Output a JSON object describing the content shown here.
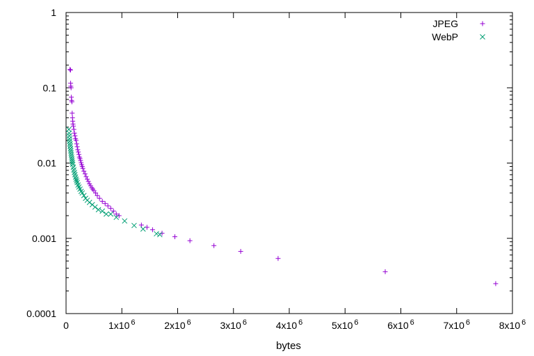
{
  "chart_data": {
    "type": "scatter",
    "title": "",
    "xlabel": "bytes",
    "ylabel": "",
    "y_scale": "log",
    "xlim": [
      0,
      8000000
    ],
    "ylim": [
      0.0001,
      1
    ],
    "grid": false,
    "legend_placement": "top-right",
    "x_ticks": [
      {
        "value": 0,
        "label": "0",
        "exp": ""
      },
      {
        "value": 1000000,
        "label": "1x10",
        "exp": "6"
      },
      {
        "value": 2000000,
        "label": "2x10",
        "exp": "6"
      },
      {
        "value": 3000000,
        "label": "3x10",
        "exp": "6"
      },
      {
        "value": 4000000,
        "label": "4x10",
        "exp": "6"
      },
      {
        "value": 5000000,
        "label": "5x10",
        "exp": "6"
      },
      {
        "value": 6000000,
        "label": "6x10",
        "exp": "6"
      },
      {
        "value": 7000000,
        "label": "7x10",
        "exp": "6"
      },
      {
        "value": 8000000,
        "label": "8x10",
        "exp": "6"
      }
    ],
    "y_ticks": [
      {
        "value": 1,
        "label": "1"
      },
      {
        "value": 0.1,
        "label": "0.1"
      },
      {
        "value": 0.01,
        "label": "0.01"
      },
      {
        "value": 0.001,
        "label": "0.001"
      },
      {
        "value": 0.0001,
        "label": "0.0001"
      }
    ],
    "series": [
      {
        "name": "JPEG",
        "marker": "plus",
        "color": "#9400d3",
        "points": [
          [
            70000,
            0.175
          ],
          [
            80000,
            0.172
          ],
          [
            82000,
            0.115
          ],
          [
            85000,
            0.105
          ],
          [
            90000,
            0.1
          ],
          [
            95000,
            0.075
          ],
          [
            100000,
            0.068
          ],
          [
            105000,
            0.065
          ],
          [
            110000,
            0.046
          ],
          [
            115000,
            0.04
          ],
          [
            120000,
            0.036
          ],
          [
            125000,
            0.033
          ],
          [
            130000,
            0.031
          ],
          [
            140000,
            0.028
          ],
          [
            150000,
            0.025
          ],
          [
            160000,
            0.023
          ],
          [
            170000,
            0.021
          ],
          [
            180000,
            0.02
          ],
          [
            190000,
            0.018
          ],
          [
            200000,
            0.0165
          ],
          [
            210000,
            0.015
          ],
          [
            220000,
            0.014
          ],
          [
            230000,
            0.013
          ],
          [
            240000,
            0.012
          ],
          [
            250000,
            0.0115
          ],
          [
            260000,
            0.0108
          ],
          [
            270000,
            0.0101
          ],
          [
            280000,
            0.0095
          ],
          [
            290000,
            0.009
          ],
          [
            300000,
            0.0085
          ],
          [
            320000,
            0.0078
          ],
          [
            340000,
            0.0072
          ],
          [
            360000,
            0.0066
          ],
          [
            380000,
            0.0061
          ],
          [
            400000,
            0.0057
          ],
          [
            420000,
            0.0053
          ],
          [
            440000,
            0.005
          ],
          [
            460000,
            0.0047
          ],
          [
            480000,
            0.0045
          ],
          [
            500000,
            0.0043
          ],
          [
            530000,
            0.004
          ],
          [
            560000,
            0.0037
          ],
          [
            600000,
            0.0034
          ],
          [
            650000,
            0.0031
          ],
          [
            700000,
            0.0029
          ],
          [
            750000,
            0.0027
          ],
          [
            800000,
            0.0025
          ],
          [
            850000,
            0.0023
          ],
          [
            900000,
            0.0021
          ],
          [
            950000,
            0.002
          ],
          [
            1350000,
            0.0015
          ],
          [
            1450000,
            0.0014
          ],
          [
            1550000,
            0.0013
          ],
          [
            1720000,
            0.00117
          ],
          [
            1950000,
            0.00105
          ],
          [
            2220000,
            0.00093
          ],
          [
            2650000,
            0.0008
          ],
          [
            3130000,
            0.00067
          ],
          [
            3800000,
            0.00054
          ],
          [
            5720000,
            0.00036
          ],
          [
            7700000,
            0.00025
          ]
        ]
      },
      {
        "name": "WebP",
        "marker": "cross",
        "color": "#009e73",
        "points": [
          [
            50000,
            0.028
          ],
          [
            55000,
            0.025
          ],
          [
            58000,
            0.023
          ],
          [
            62000,
            0.021
          ],
          [
            66000,
            0.0195
          ],
          [
            70000,
            0.018
          ],
          [
            75000,
            0.0168
          ],
          [
            80000,
            0.0155
          ],
          [
            85000,
            0.0145
          ],
          [
            90000,
            0.0136
          ],
          [
            95000,
            0.0128
          ],
          [
            100000,
            0.012
          ],
          [
            105000,
            0.0113
          ],
          [
            110000,
            0.0107
          ],
          [
            115000,
            0.0101
          ],
          [
            120000,
            0.0096
          ],
          [
            130000,
            0.0088
          ],
          [
            140000,
            0.0081
          ],
          [
            150000,
            0.0075
          ],
          [
            160000,
            0.007
          ],
          [
            170000,
            0.0065
          ],
          [
            180000,
            0.0061
          ],
          [
            190000,
            0.0058
          ],
          [
            200000,
            0.0055
          ],
          [
            215000,
            0.0051
          ],
          [
            230000,
            0.0048
          ],
          [
            250000,
            0.0045
          ],
          [
            270000,
            0.0042
          ],
          [
            290000,
            0.004
          ],
          [
            320000,
            0.0037
          ],
          [
            350000,
            0.0034
          ],
          [
            380000,
            0.0032
          ],
          [
            420000,
            0.003
          ],
          [
            470000,
            0.0028
          ],
          [
            520000,
            0.0026
          ],
          [
            580000,
            0.0024
          ],
          [
            650000,
            0.0023
          ],
          [
            720000,
            0.0021
          ],
          [
            800000,
            0.0021
          ],
          [
            900000,
            0.0019
          ],
          [
            1050000,
            0.0017
          ],
          [
            1220000,
            0.00148
          ],
          [
            1380000,
            0.00133
          ],
          [
            1620000,
            0.00115
          ],
          [
            1680000,
            0.00112
          ]
        ]
      }
    ]
  }
}
